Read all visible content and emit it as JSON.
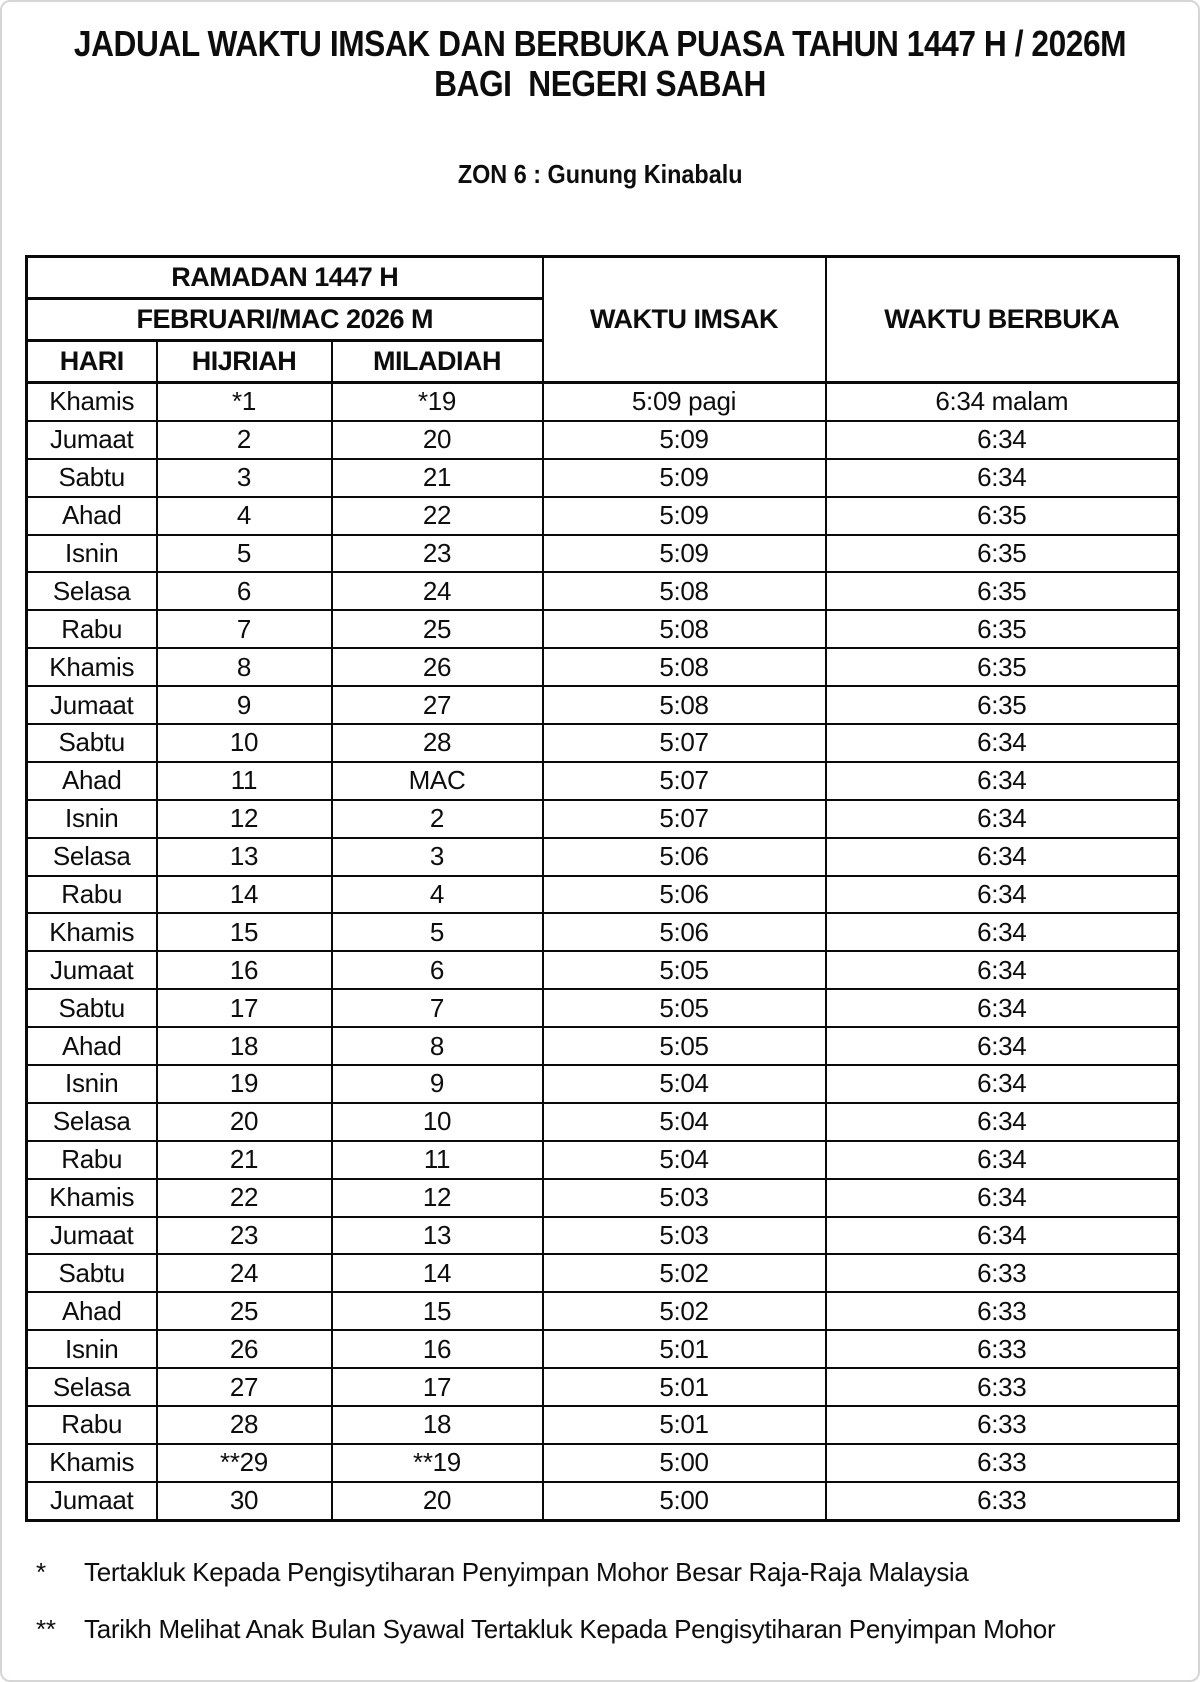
{
  "document": {
    "title_line1": "JADUAL WAKTU IMSAK DAN BERBUKA PUASA TAHUN 1447 H / 2026M",
    "title_line2": "BAGI  NEGERI SABAH",
    "zone": "ZON 6 : Gunung Kinabalu"
  },
  "table": {
    "headers": {
      "hijri_period": "RAMADAN 1447 H",
      "gregorian_period": "FEBRUARI/MAC 2026 M",
      "day": "HARI",
      "hijriah": "HIJRIAH",
      "miladiah": "MILADIAH",
      "imsak": "WAKTU IMSAK",
      "berbuka": "WAKTU BERBUKA"
    },
    "rows": [
      {
        "hari": "Khamis",
        "hijriah": "*1",
        "miladiah": "*19",
        "imsak": "5:09 pagi",
        "berbuka": "6:34 malam"
      },
      {
        "hari": "Jumaat",
        "hijriah": "2",
        "miladiah": "20",
        "imsak": "5:09",
        "berbuka": "6:34"
      },
      {
        "hari": "Sabtu",
        "hijriah": "3",
        "miladiah": "21",
        "imsak": "5:09",
        "berbuka": "6:34"
      },
      {
        "hari": "Ahad",
        "hijriah": "4",
        "miladiah": "22",
        "imsak": "5:09",
        "berbuka": "6:35"
      },
      {
        "hari": "Isnin",
        "hijriah": "5",
        "miladiah": "23",
        "imsak": "5:09",
        "berbuka": "6:35"
      },
      {
        "hari": "Selasa",
        "hijriah": "6",
        "miladiah": "24",
        "imsak": "5:08",
        "berbuka": "6:35"
      },
      {
        "hari": "Rabu",
        "hijriah": "7",
        "miladiah": "25",
        "imsak": "5:08",
        "berbuka": "6:35"
      },
      {
        "hari": "Khamis",
        "hijriah": "8",
        "miladiah": "26",
        "imsak": "5:08",
        "berbuka": "6:35"
      },
      {
        "hari": "Jumaat",
        "hijriah": "9",
        "miladiah": "27",
        "imsak": "5:08",
        "berbuka": "6:35"
      },
      {
        "hari": "Sabtu",
        "hijriah": "10",
        "miladiah": "28",
        "imsak": "5:07",
        "berbuka": "6:34"
      },
      {
        "hari": "Ahad",
        "hijriah": "11",
        "miladiah": "MAC",
        "imsak": "5:07",
        "berbuka": "6:34"
      },
      {
        "hari": "Isnin",
        "hijriah": "12",
        "miladiah": "2",
        "imsak": "5:07",
        "berbuka": "6:34"
      },
      {
        "hari": "Selasa",
        "hijriah": "13",
        "miladiah": "3",
        "imsak": "5:06",
        "berbuka": "6:34"
      },
      {
        "hari": "Rabu",
        "hijriah": "14",
        "miladiah": "4",
        "imsak": "5:06",
        "berbuka": "6:34"
      },
      {
        "hari": "Khamis",
        "hijriah": "15",
        "miladiah": "5",
        "imsak": "5:06",
        "berbuka": "6:34"
      },
      {
        "hari": "Jumaat",
        "hijriah": "16",
        "miladiah": "6",
        "imsak": "5:05",
        "berbuka": "6:34"
      },
      {
        "hari": "Sabtu",
        "hijriah": "17",
        "miladiah": "7",
        "imsak": "5:05",
        "berbuka": "6:34"
      },
      {
        "hari": "Ahad",
        "hijriah": "18",
        "miladiah": "8",
        "imsak": "5:05",
        "berbuka": "6:34"
      },
      {
        "hari": "Isnin",
        "hijriah": "19",
        "miladiah": "9",
        "imsak": "5:04",
        "berbuka": "6:34"
      },
      {
        "hari": "Selasa",
        "hijriah": "20",
        "miladiah": "10",
        "imsak": "5:04",
        "berbuka": "6:34"
      },
      {
        "hari": "Rabu",
        "hijriah": "21",
        "miladiah": "11",
        "imsak": "5:04",
        "berbuka": "6:34"
      },
      {
        "hari": "Khamis",
        "hijriah": "22",
        "miladiah": "12",
        "imsak": "5:03",
        "berbuka": "6:34"
      },
      {
        "hari": "Jumaat",
        "hijriah": "23",
        "miladiah": "13",
        "imsak": "5:03",
        "berbuka": "6:34"
      },
      {
        "hari": "Sabtu",
        "hijriah": "24",
        "miladiah": "14",
        "imsak": "5:02",
        "berbuka": "6:33"
      },
      {
        "hari": "Ahad",
        "hijriah": "25",
        "miladiah": "15",
        "imsak": "5:02",
        "berbuka": "6:33"
      },
      {
        "hari": "Isnin",
        "hijriah": "26",
        "miladiah": "16",
        "imsak": "5:01",
        "berbuka": "6:33"
      },
      {
        "hari": "Selasa",
        "hijriah": "27",
        "miladiah": "17",
        "imsak": "5:01",
        "berbuka": "6:33"
      },
      {
        "hari": "Rabu",
        "hijriah": "28",
        "miladiah": "18",
        "imsak": "5:01",
        "berbuka": "6:33"
      },
      {
        "hari": "Khamis",
        "hijriah": "**29",
        "miladiah": "**19",
        "imsak": "5:00",
        "berbuka": "6:33"
      },
      {
        "hari": "Jumaat",
        "hijriah": "30",
        "miladiah": "20",
        "imsak": "5:00",
        "berbuka": "6:33"
      }
    ]
  },
  "footnotes": [
    {
      "marker": "*",
      "text": "Tertakluk Kepada Pengisytiharan Penyimpan Mohor Besar Raja-Raja Malaysia"
    },
    {
      "marker": "**",
      "text": "Tarikh Melihat Anak Bulan Syawal Tertakluk Kepada Pengisytiharan Penyimpan Mohor"
    }
  ],
  "colors": {
    "page_background": "#ffffff",
    "text": "#0d0d0d",
    "table_border": "#0a0a0a",
    "page_frame": "#d6d6d6"
  }
}
